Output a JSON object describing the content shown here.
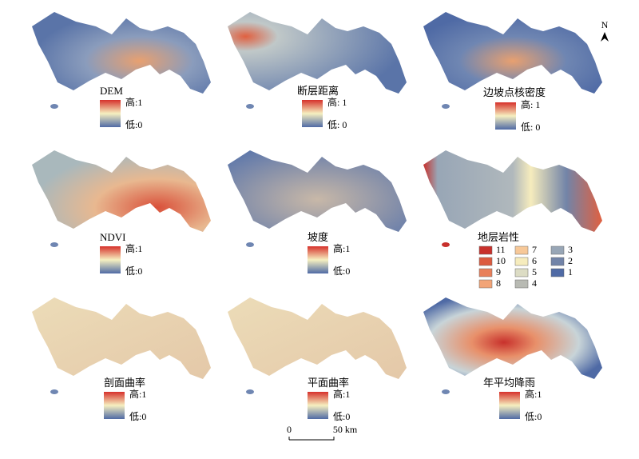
{
  "panels": [
    {
      "title": "DEM",
      "high": "高:1",
      "low": "低:0"
    },
    {
      "title": "断层距离",
      "high": "高: 1",
      "low": "低: 0"
    },
    {
      "title": "边坡点核密度",
      "high": "高: 1",
      "low": "低: 0"
    },
    {
      "title": "NDVI",
      "high": "高:1",
      "low": "低:0"
    },
    {
      "title": "坡度",
      "high": "高:1",
      "low": "低:0"
    },
    {
      "title": "地层岩性",
      "legend": [
        {
          "label": "11",
          "color": "#c8312c"
        },
        {
          "label": "10",
          "color": "#dc5a3f"
        },
        {
          "label": "9",
          "color": "#e87f5a"
        },
        {
          "label": "8",
          "color": "#f2a477"
        },
        {
          "label": "7",
          "color": "#f7c898"
        },
        {
          "label": "6",
          "color": "#f6ecbd"
        },
        {
          "label": "5",
          "color": "#dcdcc4"
        },
        {
          "label": "4",
          "color": "#b8bab3"
        },
        {
          "label": "3",
          "color": "#98a6b6"
        },
        {
          "label": "2",
          "color": "#7284a8"
        },
        {
          "label": "1",
          "color": "#4f6aa5"
        }
      ]
    },
    {
      "title": "剖面曲率",
      "high": "高:1",
      "low": "低:0"
    },
    {
      "title": "平面曲率",
      "high": "高:1",
      "low": "低:0"
    },
    {
      "title": "年平均降雨",
      "high": "高:1",
      "low": "低:0"
    }
  ],
  "north": "N",
  "scale": {
    "start": "0",
    "end": "50 km"
  }
}
